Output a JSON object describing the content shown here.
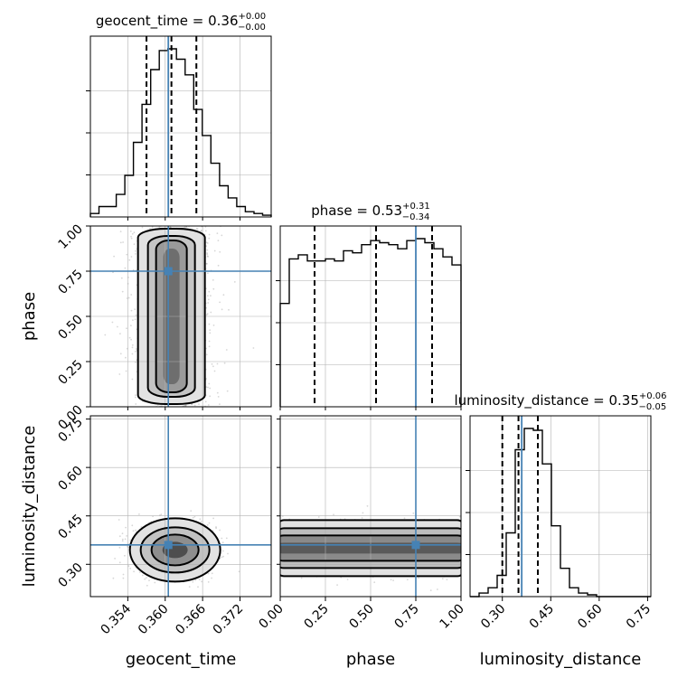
{
  "chart_data": {
    "type": "corner",
    "parameters": [
      {
        "name": "geocent_time",
        "median": 0.361,
        "lower": 0.357,
        "upper": 0.365,
        "truth": 0.3605,
        "title_value": "0.36",
        "title_plus": "+0.00",
        "title_minus": "−0.00",
        "axis_range": [
          0.348,
          0.377
        ],
        "ticks": [
          0.354,
          0.36,
          0.366,
          0.372
        ]
      },
      {
        "name": "phase",
        "median": 0.53,
        "lower": 0.19,
        "upper": 0.84,
        "truth": 0.75,
        "title_value": "0.53",
        "title_plus": "+0.31",
        "title_minus": "−0.34",
        "axis_range": [
          0.0,
          1.0
        ],
        "ticks": [
          0.0,
          0.25,
          0.5,
          0.75,
          1.0
        ]
      },
      {
        "name": "luminosity_distance",
        "median": 0.35,
        "lower": 0.3,
        "upper": 0.41,
        "truth": 0.36,
        "title_value": "0.35",
        "title_plus": "+0.06",
        "title_minus": "−0.05",
        "axis_range": [
          0.2,
          0.76
        ],
        "ticks": [
          0.3,
          0.45,
          0.6,
          0.75
        ]
      }
    ],
    "histograms": {
      "geocent_time": {
        "counts": [
          2,
          6,
          6,
          13,
          24,
          43,
          65,
          85,
          96,
          97,
          91,
          82,
          62,
          47,
          31,
          18,
          11,
          6,
          3,
          2,
          1
        ]
      },
      "phase": {
        "counts": [
          51,
          73,
          75,
          72,
          72,
          73,
          72,
          77,
          76,
          80,
          82,
          81,
          80,
          78,
          82,
          83,
          81,
          78,
          74,
          70
        ]
      },
      "luminosity_distance": {
        "counts": [
          0,
          2,
          5,
          12,
          36,
          83,
          95,
          94,
          75,
          40,
          16,
          5,
          2,
          1,
          0,
          0,
          0,
          0,
          0,
          0
        ]
      }
    },
    "grid": true,
    "truth_color": "#4682b4",
    "hist_color": "#000000"
  }
}
